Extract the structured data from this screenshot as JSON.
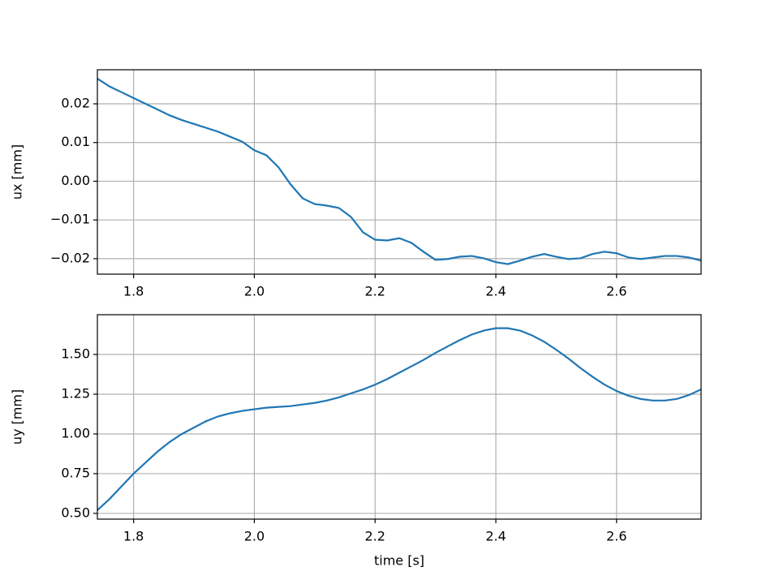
{
  "chart_data": [
    {
      "type": "line",
      "ylabel": "ux [mm]",
      "color": "#1f77b4",
      "grid": true,
      "x": [
        1.74,
        1.76,
        1.78,
        1.8,
        1.82,
        1.84,
        1.86,
        1.88,
        1.9,
        1.92,
        1.94,
        1.96,
        1.98,
        2.0,
        2.02,
        2.04,
        2.06,
        2.08,
        2.1,
        2.12,
        2.14,
        2.16,
        2.18,
        2.2,
        2.22,
        2.24,
        2.26,
        2.28,
        2.3,
        2.32,
        2.34,
        2.36,
        2.38,
        2.4,
        2.42,
        2.44,
        2.46,
        2.48,
        2.5,
        2.52,
        2.54,
        2.56,
        2.58,
        2.6,
        2.62,
        2.64,
        2.66,
        2.68,
        2.7,
        2.72,
        2.74
      ],
      "values": [
        0.0265,
        0.0245,
        0.023,
        0.0215,
        0.02,
        0.0185,
        0.017,
        0.0158,
        0.0148,
        0.0138,
        0.0128,
        0.0115,
        0.0102,
        0.008,
        0.0067,
        0.0036,
        -0.0008,
        -0.0044,
        -0.0059,
        -0.0063,
        -0.0069,
        -0.0092,
        -0.0132,
        -0.0151,
        -0.0153,
        -0.0147,
        -0.0159,
        -0.0182,
        -0.0203,
        -0.0201,
        -0.0195,
        -0.0193,
        -0.0199,
        -0.0209,
        -0.0214,
        -0.0205,
        -0.0195,
        -0.0188,
        -0.0195,
        -0.0201,
        -0.0199,
        -0.0188,
        -0.0182,
        -0.0186,
        -0.0197,
        -0.0201,
        -0.0197,
        -0.0193,
        -0.0193,
        -0.0197,
        -0.0205
      ],
      "xlim": [
        1.74,
        2.74
      ],
      "xticks": [
        {
          "value": 1.8,
          "label": "1.8"
        },
        {
          "value": 2.0,
          "label": "2.0"
        },
        {
          "value": 2.2,
          "label": "2.2"
        },
        {
          "value": 2.4,
          "label": "2.4"
        },
        {
          "value": 2.6,
          "label": "2.6"
        }
      ],
      "ylim": [
        -0.024,
        0.0288
      ],
      "yticks": [
        {
          "value": -0.02,
          "label": "−0.02"
        },
        {
          "value": -0.01,
          "label": "−0.01"
        },
        {
          "value": 0,
          "label": "0.00"
        },
        {
          "value": 0.01,
          "label": "0.01"
        },
        {
          "value": 0.02,
          "label": "0.02"
        }
      ]
    },
    {
      "type": "line",
      "xlabel": "time [s]",
      "ylabel": "uy [mm]",
      "color": "#1f77b4",
      "grid": true,
      "x": [
        1.74,
        1.76,
        1.78,
        1.8,
        1.82,
        1.84,
        1.86,
        1.88,
        1.9,
        1.92,
        1.94,
        1.96,
        1.98,
        2.0,
        2.02,
        2.04,
        2.06,
        2.08,
        2.1,
        2.12,
        2.14,
        2.16,
        2.18,
        2.2,
        2.22,
        2.24,
        2.26,
        2.28,
        2.3,
        2.32,
        2.34,
        2.36,
        2.38,
        2.4,
        2.42,
        2.44,
        2.46,
        2.48,
        2.5,
        2.52,
        2.54,
        2.56,
        2.58,
        2.6,
        2.62,
        2.64,
        2.66,
        2.68,
        2.7,
        2.72,
        2.74
      ],
      "values": [
        0.52,
        0.59,
        0.67,
        0.75,
        0.82,
        0.89,
        0.95,
        1.0,
        1.04,
        1.08,
        1.11,
        1.13,
        1.145,
        1.155,
        1.165,
        1.17,
        1.175,
        1.185,
        1.195,
        1.21,
        1.23,
        1.255,
        1.28,
        1.31,
        1.345,
        1.385,
        1.425,
        1.465,
        1.51,
        1.55,
        1.59,
        1.625,
        1.65,
        1.665,
        1.665,
        1.65,
        1.62,
        1.58,
        1.53,
        1.475,
        1.415,
        1.36,
        1.31,
        1.27,
        1.24,
        1.22,
        1.21,
        1.21,
        1.22,
        1.245,
        1.28
      ],
      "xlim": [
        1.74,
        2.74
      ],
      "xticks": [
        {
          "value": 1.8,
          "label": "1.8"
        },
        {
          "value": 2.0,
          "label": "2.0"
        },
        {
          "value": 2.2,
          "label": "2.2"
        },
        {
          "value": 2.4,
          "label": "2.4"
        },
        {
          "value": 2.6,
          "label": "2.6"
        }
      ],
      "ylim": [
        0.464,
        1.75
      ],
      "yticks": [
        {
          "value": 0.5,
          "label": "0.50"
        },
        {
          "value": 0.75,
          "label": "0.75"
        },
        {
          "value": 1.0,
          "label": "1.00"
        },
        {
          "value": 1.25,
          "label": "1.25"
        },
        {
          "value": 1.5,
          "label": "1.50"
        }
      ]
    }
  ]
}
